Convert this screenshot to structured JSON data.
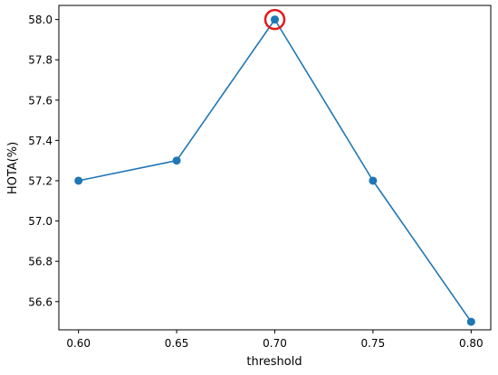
{
  "chart_data": {
    "type": "line",
    "title": "",
    "xlabel": "threshold",
    "ylabel": "HOTA(%)",
    "xlim": [
      0.59,
      0.81
    ],
    "ylim": [
      56.46,
      58.07
    ],
    "x_ticks": [
      "0.60",
      "0.65",
      "0.70",
      "0.75",
      "0.80"
    ],
    "y_ticks": [
      "56.6",
      "56.8",
      "57.0",
      "57.2",
      "57.4",
      "57.6",
      "57.8",
      "58.0"
    ],
    "grid": false,
    "x": [
      0.6,
      0.65,
      0.7,
      0.75,
      0.8
    ],
    "series": [
      {
        "values": [
          57.2,
          57.3,
          58.0,
          57.2,
          56.5
        ],
        "color": "#1f77b4"
      }
    ],
    "highlight": {
      "x": 0.7,
      "y": 58.0,
      "color": "#e31a1c"
    }
  }
}
